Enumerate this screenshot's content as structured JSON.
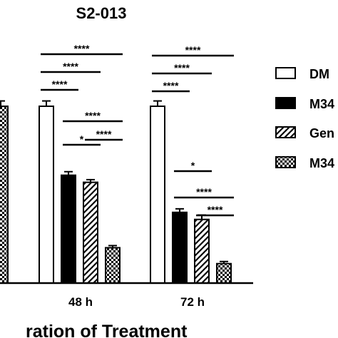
{
  "chart_data": {
    "type": "bar",
    "title": "S2-013",
    "xlabel": "ration of Treatment",
    "categories": [
      "48 h",
      "72 h"
    ],
    "series": [
      {
        "name": "DM",
        "values": [
          100,
          100
        ],
        "errors": [
          3,
          3
        ],
        "pattern": "open"
      },
      {
        "name": "M34",
        "values": [
          61,
          40
        ],
        "errors": [
          2,
          2
        ],
        "pattern": "solid"
      },
      {
        "name": "Gen",
        "values": [
          57,
          36
        ],
        "errors": [
          1.5,
          2.5
        ],
        "pattern": "hatch"
      },
      {
        "name": "M34",
        "values": [
          20,
          11
        ],
        "errors": [
          1.2,
          1.2
        ],
        "pattern": "checker"
      }
    ],
    "partial_left_bar": {
      "value": 100,
      "error": 3,
      "pattern": "checker"
    },
    "significance": [
      {
        "category": "48 h",
        "from": 0,
        "to": 3,
        "label": "****"
      },
      {
        "category": "48 h",
        "from": 0,
        "to": 2,
        "label": "****"
      },
      {
        "category": "48 h",
        "from": 0,
        "to": 1,
        "label": "****"
      },
      {
        "category": "48 h",
        "from": 1,
        "to": 3,
        "label": "****"
      },
      {
        "category": "48 h",
        "from": 2,
        "to": 3,
        "label": "****"
      },
      {
        "category": "48 h",
        "from": 1,
        "to": 2,
        "label": "*"
      },
      {
        "category": "72 h",
        "from": 0,
        "to": 3,
        "label": "****"
      },
      {
        "category": "72 h",
        "from": 0,
        "to": 2,
        "label": "****"
      },
      {
        "category": "72 h",
        "from": 0,
        "to": 1,
        "label": "****"
      },
      {
        "category": "72 h",
        "from": 1,
        "to": 2,
        "label": "*"
      },
      {
        "category": "72 h",
        "from": 1,
        "to": 3,
        "label": "****"
      },
      {
        "category": "72 h",
        "from": 2,
        "to": 3,
        "label": "****"
      }
    ],
    "legend": {
      "placement": "right",
      "labels": [
        "DM",
        "M34",
        "Gen",
        "M34"
      ]
    },
    "grid": false
  }
}
